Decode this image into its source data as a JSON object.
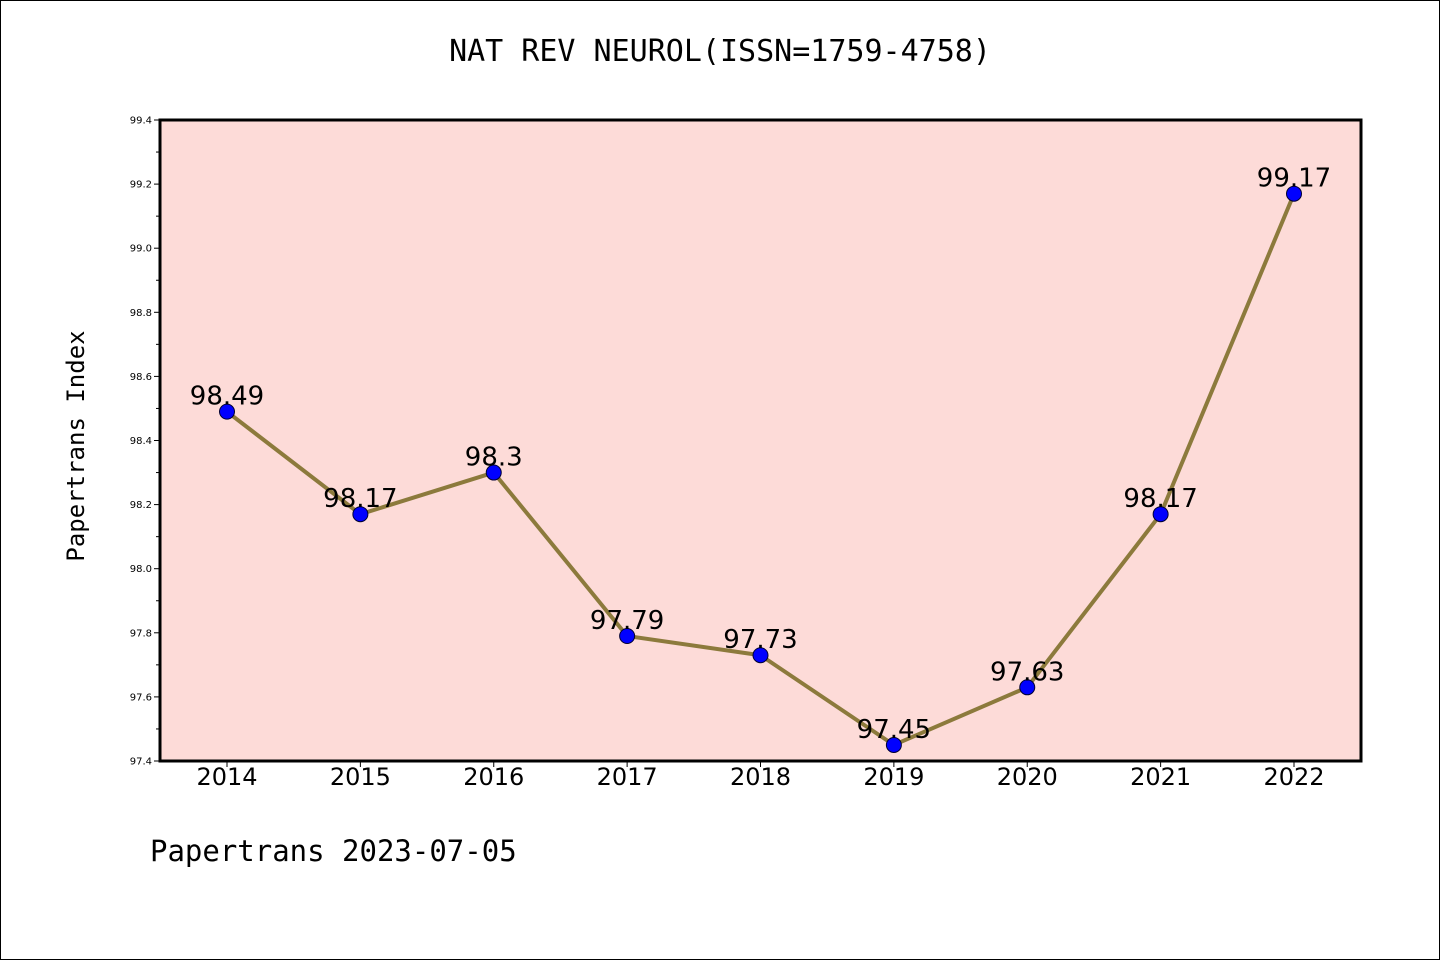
{
  "chart_data": {
    "type": "line",
    "title": "NAT REV NEUROL(ISSN=1759-4758)",
    "xlabel": "",
    "ylabel": "Papertrans Index",
    "categories": [
      "2014",
      "2015",
      "2016",
      "2017",
      "2018",
      "2019",
      "2020",
      "2021",
      "2022"
    ],
    "series": [
      {
        "values": [
          98.49,
          98.17,
          98.3,
          97.79,
          97.73,
          97.45,
          97.63,
          98.17,
          99.17
        ],
        "labels": [
          "98.49",
          "98.17",
          "98.3",
          "97.79",
          "97.73",
          "97.45",
          "97.63",
          "98.17",
          "99.17"
        ],
        "line_color": "#8c7a3c",
        "marker_color": "#0000ff"
      }
    ],
    "ylim": [
      97.4,
      99.4
    ],
    "yticks": [
      "97.4",
      "97.6",
      "97.8",
      "98.0",
      "98.2",
      "98.4",
      "98.6",
      "98.8",
      "99.0",
      "99.2",
      "99.4"
    ],
    "plot_background": "#fddbd8",
    "grid": false,
    "legend": "none"
  },
  "footer": "Papertrans 2023-07-05"
}
